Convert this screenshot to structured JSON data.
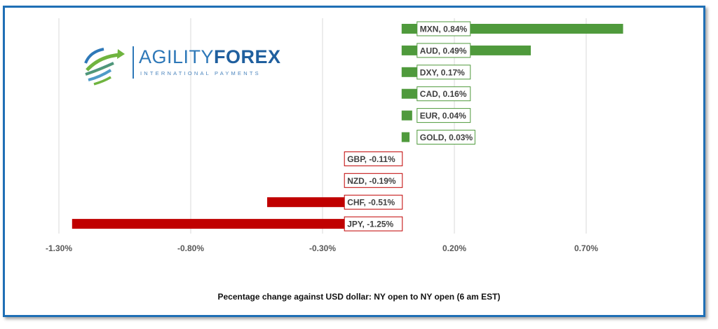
{
  "chart_data": {
    "type": "bar",
    "orientation": "horizontal",
    "categories": [
      "MXN",
      "AUD",
      "DXY",
      "CAD",
      "EUR",
      "GOLD",
      "GBP",
      "NZD",
      "CHF",
      "JPY"
    ],
    "values": [
      0.84,
      0.49,
      0.17,
      0.16,
      0.04,
      0.03,
      -0.11,
      -0.19,
      -0.51,
      -1.25
    ],
    "data_labels": [
      "MXN, 0.84%",
      "AUD, 0.49%",
      "DXY, 0.17%",
      "CAD, 0.16%",
      "EUR, 0.04%",
      "GOLD, 0.03%",
      "GBP, -0.11%",
      "NZD, -0.19%",
      "CHF, -0.51%",
      "JPY, -1.25%"
    ],
    "x_ticks": [
      -1.3,
      -0.8,
      -0.3,
      0.2,
      0.7
    ],
    "x_tick_labels": [
      "-1.30%",
      "-0.80%",
      "-0.30%",
      "0.20%",
      "0.70%"
    ],
    "xlim": [
      -1.3,
      0.95
    ],
    "grid": "vertical",
    "colors": {
      "positive": "#4f9a3c",
      "negative": "#c00000",
      "positive_label_border": "#4f9a3c",
      "negative_label_border": "#c00000"
    },
    "title": "",
    "xlabel": "Pecentage change against USD dollar:  NY open to NY open  (6 am EST)",
    "ylabel": ""
  },
  "logo": {
    "name_part1": "AGILITY",
    "name_part2": "FOREX",
    "tagline": "INTERNATIONAL PAYMENTS"
  },
  "frame_color": "#1f6fb5"
}
